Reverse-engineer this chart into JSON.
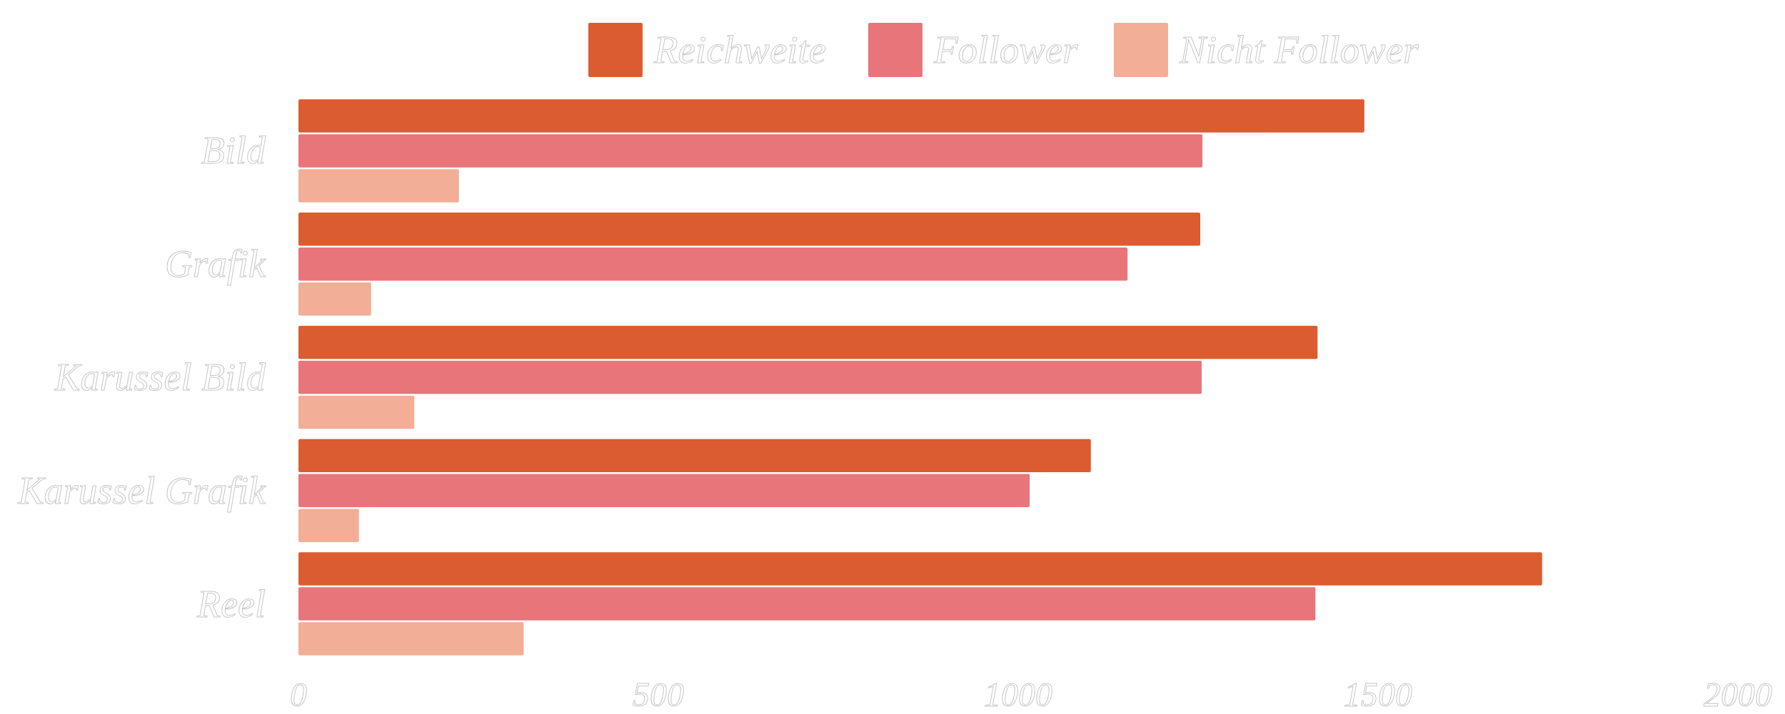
{
  "chart_data": {
    "type": "bar",
    "orientation": "horizontal",
    "categories": [
      "Bild",
      "Grafik",
      "Karussel Bild",
      "Karussel Grafik",
      "Reel"
    ],
    "series": [
      {
        "name": "Reichweite",
        "color": "#db5c31",
        "values": [
          1481,
          1253,
          1416,
          1101,
          1728
        ]
      },
      {
        "name": "Follower",
        "color": "#e8757a",
        "values": [
          1256,
          1152,
          1255,
          1016,
          1413
        ]
      },
      {
        "name": "Nicht Follower",
        "color": "#f2ae96",
        "values": [
          223,
          101,
          161,
          84,
          313
        ]
      }
    ],
    "xlim": [
      0,
      2000
    ],
    "xticks": [
      0,
      500,
      1000,
      1500,
      2000
    ],
    "legend": "top",
    "grid": false
  }
}
